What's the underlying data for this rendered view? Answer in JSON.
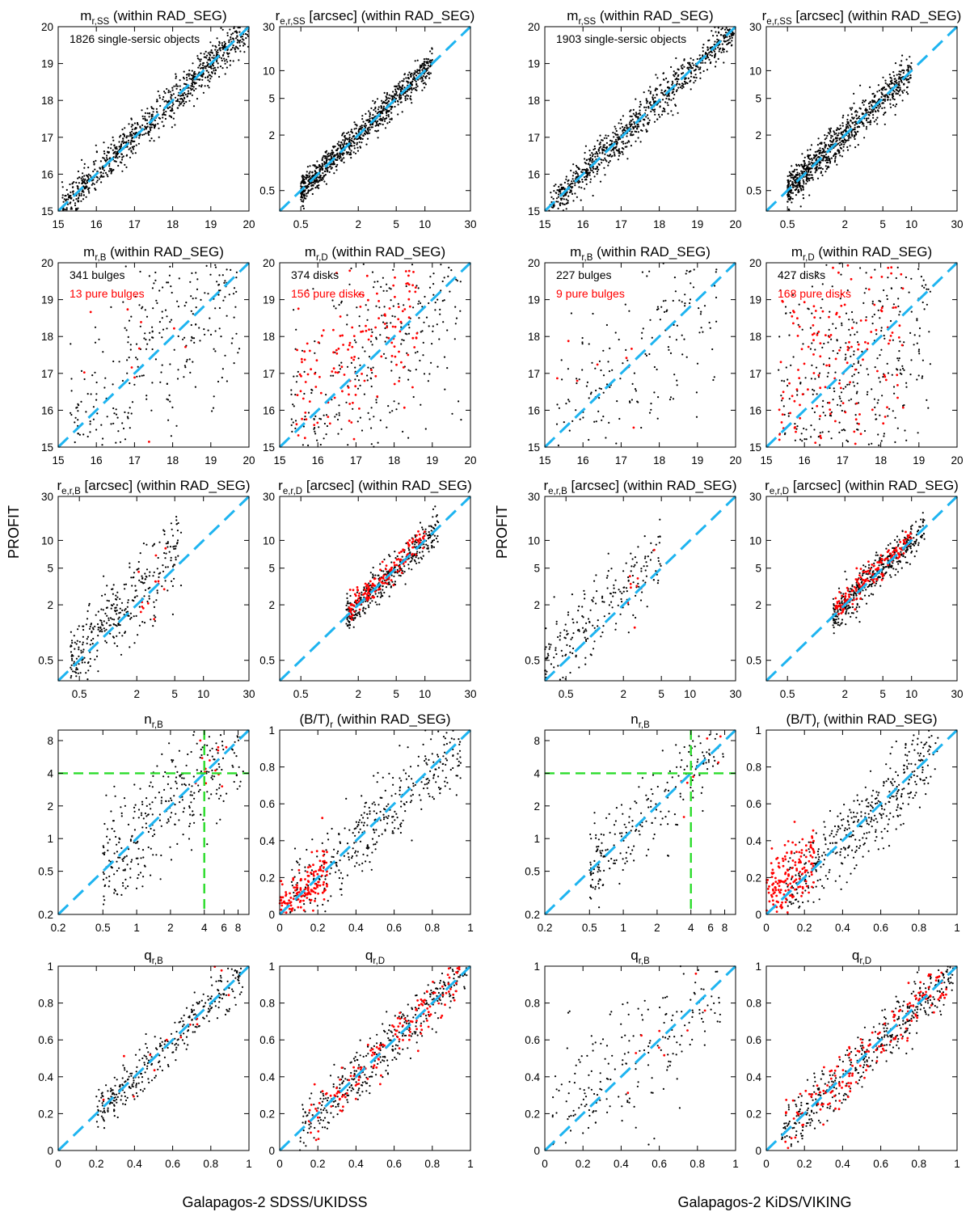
{
  "figure": {
    "ylabel": "PROFIT",
    "xlabels": [
      "Galapagos-2 SDSS/UKIDSS",
      "Galapagos-2 KiDS/VIKING"
    ]
  },
  "colors": {
    "one_to_one": "#1eb4f0",
    "guide": "#2bdc2b",
    "black": "#000000",
    "red": "#ff0000"
  },
  "chart_data": [
    {
      "id": "L-mSS",
      "type": "scatter",
      "title_main": "m",
      "title_sub": "r,SS",
      "title_rest": " (within RAD_SEG)",
      "scale": "linear",
      "range": [
        15,
        20
      ],
      "ticks": [
        15,
        16,
        17,
        18,
        19,
        20
      ],
      "tick_labels": [
        "15",
        "16",
        "17",
        "18",
        "19",
        "20"
      ],
      "grid": false,
      "reference_line": "1:1",
      "annotations": [
        {
          "text": "1826 single-sersic objects",
          "color": "black"
        }
      ],
      "series": [
        {
          "color": "black",
          "n": 1826,
          "x_range": [
            15.1,
            20.0
          ],
          "scatter": 0.05,
          "trend": "on 1:1 line"
        }
      ]
    },
    {
      "id": "L-reSS",
      "type": "scatter",
      "title_main": "r",
      "title_sub": "e,r,SS",
      "title_rest": " [arcsec] (within RAD_SEG)",
      "scale": "log",
      "range": [
        0.3,
        30
      ],
      "ticks": [
        0.5,
        2,
        5,
        10,
        30
      ],
      "tick_labels": [
        "0.5",
        "2",
        "5",
        "10",
        "30"
      ],
      "grid": false,
      "reference_line": "1:1",
      "annotations": [],
      "series": [
        {
          "color": "black",
          "n": 1826,
          "x_range": [
            0.5,
            12
          ],
          "scatter": 0.08,
          "trend": "slightly above 1:1 at small radii"
        }
      ]
    },
    {
      "id": "R-mSS",
      "type": "scatter",
      "title_main": "m",
      "title_sub": "r,SS",
      "title_rest": " (within RAD_SEG)",
      "scale": "linear",
      "range": [
        15,
        20
      ],
      "ticks": [
        15,
        16,
        17,
        18,
        19,
        20
      ],
      "tick_labels": [
        "15",
        "16",
        "17",
        "18",
        "19",
        "20"
      ],
      "grid": false,
      "reference_line": "1:1",
      "annotations": [
        {
          "text": "1903 single-sersic objects",
          "color": "black"
        }
      ],
      "series": [
        {
          "color": "black",
          "n": 1903,
          "x_range": [
            15.1,
            20.0
          ],
          "scatter": 0.05,
          "trend": "on 1:1 line"
        }
      ]
    },
    {
      "id": "R-reSS",
      "type": "scatter",
      "title_main": "r",
      "title_sub": "e,r,SS",
      "title_rest": " [arcsec] (within RAD_SEG)",
      "scale": "log",
      "range": [
        0.3,
        30
      ],
      "ticks": [
        0.5,
        2,
        5,
        10,
        30
      ],
      "tick_labels": [
        "0.5",
        "2",
        "5",
        "10",
        "30"
      ],
      "grid": false,
      "reference_line": "1:1",
      "annotations": [],
      "series": [
        {
          "color": "black",
          "n": 1903,
          "x_range": [
            0.5,
            10
          ],
          "scatter": 0.1,
          "trend": "above 1:1 at small radii"
        }
      ]
    },
    {
      "id": "L-mB",
      "type": "scatter",
      "title_main": "m",
      "title_sub": "r,B",
      "title_rest": " (within RAD_SEG)",
      "scale": "linear",
      "range": [
        15,
        20
      ],
      "ticks": [
        15,
        16,
        17,
        18,
        19,
        20
      ],
      "tick_labels": [
        "15",
        "16",
        "17",
        "18",
        "19",
        "20"
      ],
      "grid": false,
      "reference_line": "1:1",
      "annotations": [
        {
          "text": "341 bulges",
          "color": "black"
        },
        {
          "text": "13 pure bulges",
          "color": "red"
        }
      ],
      "series": [
        {
          "color": "black",
          "n": 341,
          "x_range": [
            15.3,
            19.8
          ],
          "scatter": 0.3
        },
        {
          "color": "red",
          "n": 13,
          "x_range": [
            15.5,
            18.5
          ],
          "scatter": 0.4
        }
      ]
    },
    {
      "id": "L-mD",
      "type": "scatter",
      "title_main": "m",
      "title_sub": "r,D",
      "title_rest": " (within RAD_SEG)",
      "scale": "linear",
      "range": [
        15,
        20
      ],
      "ticks": [
        15,
        16,
        17,
        18,
        19,
        20
      ],
      "tick_labels": [
        "15",
        "16",
        "17",
        "18",
        "19",
        "20"
      ],
      "grid": false,
      "reference_line": "1:1",
      "annotations": [
        {
          "text": "374 disks",
          "color": "black"
        },
        {
          "text": "156 pure disks",
          "color": "red"
        }
      ],
      "series": [
        {
          "color": "black",
          "n": 374,
          "x_range": [
            15.3,
            19.8
          ],
          "scatter": 0.35
        },
        {
          "color": "red",
          "n": 156,
          "x_range": [
            15.4,
            18.6
          ],
          "scatter": 0.2,
          "offset": 0.2
        }
      ]
    },
    {
      "id": "R-mB",
      "type": "scatter",
      "title_main": "m",
      "title_sub": "r,B",
      "title_rest": " (within RAD_SEG)",
      "scale": "linear",
      "range": [
        15,
        20
      ],
      "ticks": [
        15,
        16,
        17,
        18,
        19,
        20
      ],
      "tick_labels": [
        "15",
        "16",
        "17",
        "18",
        "19",
        "20"
      ],
      "grid": false,
      "reference_line": "1:1",
      "annotations": [
        {
          "text": "227 bulges",
          "color": "black"
        },
        {
          "text": "9 pure bulges",
          "color": "red"
        }
      ],
      "series": [
        {
          "color": "black",
          "n": 227,
          "x_range": [
            15.3,
            19.5
          ],
          "scatter": 0.3
        },
        {
          "color": "red",
          "n": 9,
          "x_range": [
            15.3,
            17.5
          ],
          "scatter": 0.3
        }
      ]
    },
    {
      "id": "R-mD",
      "type": "scatter",
      "title_main": "m",
      "title_sub": "r,D",
      "title_rest": " (within RAD_SEG)",
      "scale": "linear",
      "range": [
        15,
        20
      ],
      "ticks": [
        15,
        16,
        17,
        18,
        19,
        20
      ],
      "tick_labels": [
        "15",
        "16",
        "17",
        "18",
        "19",
        "20"
      ],
      "grid": false,
      "reference_line": "1:1",
      "annotations": [
        {
          "text": "427 disks",
          "color": "black"
        },
        {
          "text": "168 pure disks",
          "color": "red"
        }
      ],
      "series": [
        {
          "color": "black",
          "n": 427,
          "x_range": [
            15.3,
            19.3
          ],
          "scatter": 0.35
        },
        {
          "color": "red",
          "n": 168,
          "x_range": [
            15.3,
            18.6
          ],
          "scatter": 0.3,
          "offset": 0.15
        }
      ]
    },
    {
      "id": "L-reB",
      "type": "scatter",
      "title_main": "r",
      "title_sub": "e,r,B",
      "title_rest": " [arcsec] (within RAD_SEG)",
      "scale": "log",
      "range": [
        0.3,
        30
      ],
      "ticks": [
        0.5,
        2,
        5,
        10,
        30
      ],
      "tick_labels": [
        "0.5",
        "2",
        "5",
        "10",
        "30"
      ],
      "grid": false,
      "reference_line": "1:1",
      "annotations": [],
      "series": [
        {
          "color": "black",
          "n": 341,
          "x_range": [
            0.4,
            6
          ],
          "scatter": 0.2,
          "offset": 0.1
        },
        {
          "color": "red",
          "n": 13,
          "x_range": [
            2,
            6
          ],
          "scatter": 0.25
        }
      ]
    },
    {
      "id": "L-reD",
      "type": "scatter",
      "title_main": "r",
      "title_sub": "e,r,D",
      "title_rest": " [arcsec] (within RAD_SEG)",
      "scale": "log",
      "range": [
        0.3,
        30
      ],
      "ticks": [
        0.5,
        2,
        5,
        10,
        30
      ],
      "tick_labels": [
        "0.5",
        "2",
        "5",
        "10",
        "30"
      ],
      "grid": false,
      "reference_line": "1:1",
      "annotations": [],
      "series": [
        {
          "color": "black",
          "n": 374,
          "x_range": [
            1.5,
            14
          ],
          "scatter": 0.1
        },
        {
          "color": "red",
          "n": 156,
          "x_range": [
            1.6,
            10
          ],
          "scatter": 0.07,
          "offset": 0.04
        }
      ]
    },
    {
      "id": "R-reB",
      "type": "scatter",
      "title_main": "r",
      "title_sub": "e,r,B",
      "title_rest": " [arcsec] (within RAD_SEG)",
      "scale": "log",
      "range": [
        0.3,
        30
      ],
      "ticks": [
        0.5,
        2,
        5,
        10,
        30
      ],
      "tick_labels": [
        "0.5",
        "2",
        "5",
        "10",
        "30"
      ],
      "grid": false,
      "reference_line": "1:1",
      "annotations": [],
      "series": [
        {
          "color": "black",
          "n": 227,
          "x_range": [
            0.3,
            5
          ],
          "scatter": 0.2,
          "offset": 0.15
        },
        {
          "color": "red",
          "n": 9,
          "x_range": [
            2,
            4.5
          ],
          "scatter": 0.2
        }
      ]
    },
    {
      "id": "R-reD",
      "type": "scatter",
      "title_main": "r",
      "title_sub": "e,r,D",
      "title_rest": " [arcsec] (within RAD_SEG)",
      "scale": "log",
      "range": [
        0.3,
        30
      ],
      "ticks": [
        0.5,
        2,
        5,
        10,
        30
      ],
      "tick_labels": [
        "0.5",
        "2",
        "5",
        "10",
        "30"
      ],
      "grid": false,
      "reference_line": "1:1",
      "annotations": [],
      "series": [
        {
          "color": "black",
          "n": 427,
          "x_range": [
            1.5,
            14
          ],
          "scatter": 0.1
        },
        {
          "color": "red",
          "n": 168,
          "x_range": [
            1.6,
            10
          ],
          "scatter": 0.07,
          "offset": 0.05
        }
      ]
    },
    {
      "id": "L-nB",
      "type": "scatter",
      "title_main": "n",
      "title_sub": "r,B",
      "title_rest": "",
      "scale": "log",
      "range": [
        0.2,
        10
      ],
      "ticks": [
        0.2,
        0.5,
        1,
        2,
        4,
        6,
        8
      ],
      "tick_labels": [
        "0.2",
        "0.5",
        "1",
        "2",
        "4",
        "6",
        "8"
      ],
      "yticks": [
        0.2,
        0.5,
        1,
        2,
        4,
        8
      ],
      "ytick_labels": [
        "0.2",
        "0.5",
        "1",
        "2",
        "4",
        "8"
      ],
      "grid": false,
      "reference_line": "1:1",
      "guides": [
        4,
        4
      ],
      "annotations": [],
      "series": [
        {
          "color": "black",
          "n": 341,
          "x_range": [
            0.5,
            9
          ],
          "scatter": 0.25
        },
        {
          "color": "red",
          "n": 13,
          "x_range": [
            3,
            8
          ],
          "scatter": 0.15
        }
      ]
    },
    {
      "id": "L-BT",
      "type": "scatter",
      "title_main": "(B/T)",
      "title_sub": "r",
      "title_rest": " (within RAD_SEG)",
      "scale": "linear",
      "range": [
        0,
        1
      ],
      "ticks": [
        0,
        0.2,
        0.4,
        0.6,
        0.8,
        1
      ],
      "tick_labels": [
        "0",
        "0.2",
        "0.4",
        "0.6",
        "0.8",
        "1"
      ],
      "grid": false,
      "reference_line": "1:1",
      "annotations": [],
      "series": [
        {
          "color": "black",
          "n": 374,
          "x_range": [
            0.05,
            0.95
          ],
          "scatter": 0.1
        },
        {
          "color": "red",
          "n": 156,
          "x_range": [
            0,
            0.25
          ],
          "scatter": 0.07
        }
      ]
    },
    {
      "id": "R-nB",
      "type": "scatter",
      "title_main": "n",
      "title_sub": "r,B",
      "title_rest": "",
      "scale": "log",
      "range": [
        0.2,
        10
      ],
      "ticks": [
        0.2,
        0.5,
        1,
        2,
        4,
        6,
        8
      ],
      "tick_labels": [
        "0.2",
        "0.5",
        "1",
        "2",
        "4",
        "6",
        "8"
      ],
      "yticks": [
        0.2,
        0.5,
        1,
        2,
        4,
        8
      ],
      "ytick_labels": [
        "0.2",
        "0.5",
        "1",
        "2",
        "4",
        "8"
      ],
      "grid": false,
      "reference_line": "1:1",
      "guides": [
        4,
        4
      ],
      "annotations": [],
      "series": [
        {
          "color": "black",
          "n": 227,
          "x_range": [
            0.5,
            8
          ],
          "scatter": 0.2
        },
        {
          "color": "red",
          "n": 9,
          "x_range": [
            3,
            8
          ],
          "scatter": 0.15
        }
      ]
    },
    {
      "id": "R-BT",
      "type": "scatter",
      "title_main": "(B/T)",
      "title_sub": "r",
      "title_rest": " (within RAD_SEG)",
      "scale": "linear",
      "range": [
        0,
        1
      ],
      "ticks": [
        0,
        0.2,
        0.4,
        0.6,
        0.8,
        1
      ],
      "tick_labels": [
        "0",
        "0.2",
        "0.4",
        "0.6",
        "0.8",
        "1"
      ],
      "grid": false,
      "reference_line": "1:1",
      "annotations": [],
      "series": [
        {
          "color": "black",
          "n": 427,
          "x_range": [
            0.1,
            0.9
          ],
          "scatter": 0.1
        },
        {
          "color": "red",
          "n": 168,
          "x_range": [
            0,
            0.25
          ],
          "scatter": 0.1,
          "offset": 0.1
        }
      ]
    },
    {
      "id": "L-qB",
      "type": "scatter",
      "title_main": "q",
      "title_sub": "r,B",
      "title_rest": "",
      "scale": "linear",
      "range": [
        0,
        1
      ],
      "ticks": [
        0,
        0.2,
        0.4,
        0.6,
        0.8,
        1
      ],
      "tick_labels": [
        "0",
        "0.2",
        "0.4",
        "0.6",
        "0.8",
        "1"
      ],
      "grid": false,
      "reference_line": "1:1",
      "annotations": [],
      "series": [
        {
          "color": "black",
          "n": 341,
          "x_range": [
            0.2,
            0.97
          ],
          "scatter": 0.06
        },
        {
          "color": "red",
          "n": 13,
          "x_range": [
            0.2,
            0.9
          ],
          "scatter": 0.08
        }
      ]
    },
    {
      "id": "L-qD",
      "type": "scatter",
      "title_main": "q",
      "title_sub": "r,D",
      "title_rest": "",
      "scale": "linear",
      "range": [
        0,
        1
      ],
      "ticks": [
        0,
        0.2,
        0.4,
        0.6,
        0.8,
        1
      ],
      "tick_labels": [
        "0",
        "0.2",
        "0.4",
        "0.6",
        "0.8",
        "1"
      ],
      "grid": false,
      "reference_line": "1:1",
      "annotations": [],
      "series": [
        {
          "color": "black",
          "n": 374,
          "x_range": [
            0.1,
            0.98
          ],
          "scatter": 0.07
        },
        {
          "color": "red",
          "n": 156,
          "x_range": [
            0.15,
            0.95
          ],
          "scatter": 0.07
        }
      ]
    },
    {
      "id": "R-qB",
      "type": "scatter",
      "title_main": "q",
      "title_sub": "r,B",
      "title_rest": "",
      "scale": "linear",
      "range": [
        0,
        1
      ],
      "ticks": [
        0,
        0.2,
        0.4,
        0.6,
        0.8,
        1
      ],
      "tick_labels": [
        "0",
        "0.2",
        "0.4",
        "0.6",
        "0.8",
        "1"
      ],
      "grid": false,
      "reference_line": "1:1",
      "annotations": [],
      "series": [
        {
          "color": "black",
          "n": 227,
          "x_range": [
            0.02,
            0.92
          ],
          "scatter": 0.2,
          "offset": 0.05
        },
        {
          "color": "red",
          "n": 9,
          "x_range": [
            0.4,
            0.85
          ],
          "scatter": 0.1
        }
      ]
    },
    {
      "id": "R-qD",
      "type": "scatter",
      "title_main": "q",
      "title_sub": "r,D",
      "title_rest": "",
      "scale": "linear",
      "range": [
        0,
        1
      ],
      "ticks": [
        0,
        0.2,
        0.4,
        0.6,
        0.8,
        1
      ],
      "tick_labels": [
        "0",
        "0.2",
        "0.4",
        "0.6",
        "0.8",
        "1"
      ],
      "grid": false,
      "reference_line": "1:1",
      "annotations": [],
      "series": [
        {
          "color": "black",
          "n": 427,
          "x_range": [
            0.08,
            0.98
          ],
          "scatter": 0.07
        },
        {
          "color": "red",
          "n": 168,
          "x_range": [
            0.1,
            0.95
          ],
          "scatter": 0.07
        }
      ]
    }
  ]
}
